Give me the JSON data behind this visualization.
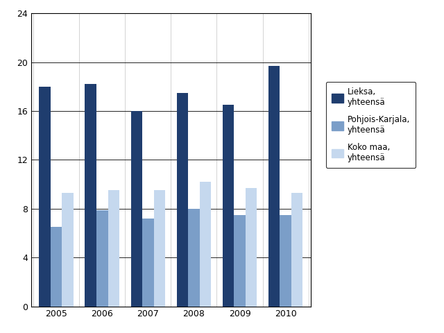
{
  "years": [
    2005,
    2006,
    2007,
    2008,
    2009,
    2010
  ],
  "lieksa": [
    18.0,
    18.2,
    16.0,
    17.5,
    16.5,
    19.7
  ],
  "pohjois_karjala": [
    6.5,
    7.9,
    7.2,
    8.0,
    7.5,
    7.5
  ],
  "koko_maa": [
    9.3,
    9.5,
    9.5,
    10.2,
    9.7,
    9.3
  ],
  "color_lieksa": "#1f3d6e",
  "color_pohjois_karjala": "#7b9ec8",
  "color_koko_maa": "#c5d8ee",
  "legend_labels": [
    "Lieksa,\nyhteensä",
    "Pohjois-Karjala,\nyhteensä",
    "Koko maa,\nyhteensä"
  ],
  "ylim": [
    0,
    24
  ],
  "yticks": [
    0,
    4,
    8,
    12,
    16,
    20,
    24
  ],
  "bar_width": 0.25,
  "background_color": "#ffffff",
  "grid_color": "#aaaaaa"
}
